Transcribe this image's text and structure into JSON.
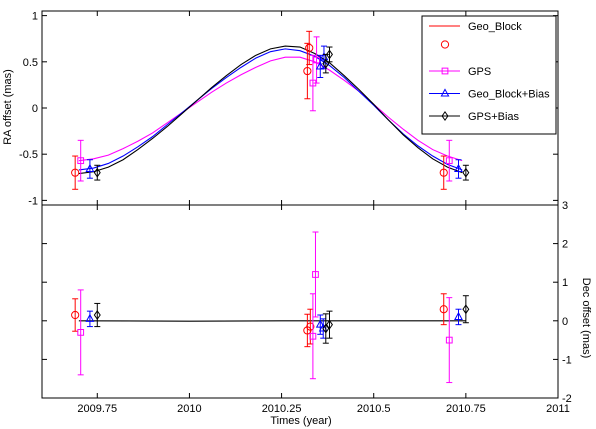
{
  "colors": {
    "Geo_Block": "#ff0000",
    "GPS": "#ff00ff",
    "Geo_Block+Bias": "#0000ff",
    "GPS+Bias": "#000000"
  },
  "chart_data": [
    {
      "type": "line",
      "panel": "top",
      "title": "",
      "xlabel": "",
      "ylabel": "RA offset (mas)",
      "xlim": [
        2009.6,
        2011.0
      ],
      "ylim": [
        -1.05,
        1.05
      ],
      "yticks": [
        -1,
        -0.5,
        0,
        0.5,
        1
      ],
      "ytick_labels": [
        "-1",
        "-0.5",
        "0",
        "0.5",
        "1"
      ],
      "grid": false,
      "legend": {
        "placement": "top-right",
        "entries": [
          {
            "label": "Geo_Block",
            "series": "Geo_Block",
            "line": true,
            "marker": false
          },
          {
            "label": "",
            "series": "Geo_Block",
            "line": false,
            "marker": "circle"
          },
          {
            "label": "GPS",
            "series": "GPS",
            "line": true,
            "marker": "square"
          },
          {
            "label": "Geo_Block+Bias",
            "series": "Geo_Block+Bias",
            "line": true,
            "marker": "triangle"
          },
          {
            "label": "GPS+Bias",
            "series": "GPS+Bias",
            "line": true,
            "marker": "diamond"
          }
        ]
      },
      "lines": [
        {
          "name": "GPS",
          "x": [
            2009.7,
            2009.74,
            2009.78,
            2009.82,
            2009.86,
            2009.9,
            2009.94,
            2009.98,
            2010.02,
            2010.06,
            2010.1,
            2010.14,
            2010.18,
            2010.22,
            2010.26,
            2010.3,
            2010.34,
            2010.38,
            2010.42,
            2010.46,
            2010.5,
            2010.54,
            2010.58,
            2010.62,
            2010.66,
            2010.7,
            2010.74
          ],
          "y": [
            -0.57,
            -0.55,
            -0.51,
            -0.44,
            -0.36,
            -0.27,
            -0.16,
            -0.05,
            0.06,
            0.17,
            0.27,
            0.36,
            0.44,
            0.51,
            0.55,
            0.55,
            0.5,
            0.41,
            0.3,
            0.18,
            0.04,
            -0.1,
            -0.23,
            -0.35,
            -0.45,
            -0.52,
            -0.57
          ]
        },
        {
          "name": "Geo_Block+Bias",
          "x": [
            2009.7,
            2009.74,
            2009.78,
            2009.82,
            2009.86,
            2009.9,
            2009.94,
            2009.98,
            2010.02,
            2010.06,
            2010.1,
            2010.14,
            2010.18,
            2010.22,
            2010.26,
            2010.3,
            2010.34,
            2010.38,
            2010.42,
            2010.46,
            2010.5,
            2010.54,
            2010.58,
            2010.62,
            2010.66,
            2010.7,
            2010.74
          ],
          "y": [
            -0.67,
            -0.65,
            -0.6,
            -0.52,
            -0.42,
            -0.31,
            -0.18,
            -0.05,
            0.08,
            0.21,
            0.33,
            0.44,
            0.54,
            0.61,
            0.64,
            0.62,
            0.56,
            0.46,
            0.33,
            0.18,
            0.03,
            -0.13,
            -0.28,
            -0.41,
            -0.52,
            -0.61,
            -0.67
          ]
        },
        {
          "name": "GPS+Bias",
          "x": [
            2009.7,
            2009.74,
            2009.78,
            2009.82,
            2009.86,
            2009.9,
            2009.94,
            2009.98,
            2010.02,
            2010.06,
            2010.1,
            2010.14,
            2010.18,
            2010.22,
            2010.26,
            2010.3,
            2010.34,
            2010.38,
            2010.42,
            2010.46,
            2010.5,
            2010.54,
            2010.58,
            2010.62,
            2010.66,
            2010.7,
            2010.74
          ],
          "y": [
            -0.71,
            -0.69,
            -0.64,
            -0.56,
            -0.45,
            -0.33,
            -0.2,
            -0.06,
            0.08,
            0.22,
            0.35,
            0.47,
            0.57,
            0.64,
            0.67,
            0.66,
            0.59,
            0.49,
            0.35,
            0.2,
            0.04,
            -0.13,
            -0.29,
            -0.43,
            -0.55,
            -0.64,
            -0.7
          ]
        }
      ],
      "points": [
        {
          "series": "Geo_Block",
          "marker": "circle",
          "x": [
            2009.69,
            2010.32,
            2010.69
          ],
          "y": [
            -0.7,
            0.4,
            -0.7
          ],
          "err": [
            0.18,
            0.3,
            0.18
          ]
        },
        {
          "series": "Geo_Block",
          "marker": "circle",
          "x": [
            2010.325
          ],
          "y": [
            0.65
          ],
          "err": [
            0.18
          ]
        },
        {
          "series": "GPS",
          "marker": "square",
          "x": [
            2009.705,
            2010.335,
            2010.345,
            2010.705
          ],
          "y": [
            -0.57,
            0.27,
            0.52,
            -0.57
          ],
          "err": [
            0.22,
            0.3,
            0.25,
            0.22
          ]
        },
        {
          "series": "Geo_Block+Bias",
          "marker": "triangle",
          "x": [
            2009.73,
            2010.355,
            2010.365,
            2010.73
          ],
          "y": [
            -0.66,
            0.45,
            0.55,
            -0.66
          ],
          "err": [
            0.1,
            0.12,
            0.12,
            0.1
          ]
        },
        {
          "series": "GPS+Bias",
          "marker": "diamond",
          "x": [
            2009.75,
            2010.37,
            2010.38,
            2010.75
          ],
          "y": [
            -0.7,
            0.48,
            0.58,
            -0.7
          ],
          "err": [
            0.08,
            0.1,
            0.08,
            0.08
          ]
        }
      ]
    },
    {
      "type": "line",
      "panel": "bottom",
      "title": "",
      "xlabel": "Times (year)",
      "ylabel": "Dec offset (mas)",
      "xlim": [
        2009.6,
        2011.0
      ],
      "ylim": [
        -2.0,
        3.0
      ],
      "xticks": [
        2009.75,
        2010.0,
        2010.25,
        2010.5,
        2010.75,
        2011.0
      ],
      "xtick_labels": [
        "2009.75",
        "2010",
        "2010.25",
        "2010.5",
        "2010.75",
        "2011"
      ],
      "yticks": [
        -2,
        -1,
        0,
        1,
        2,
        3
      ],
      "ytick_labels": [
        "-2",
        "-1",
        "0",
        "1",
        "2",
        "3"
      ],
      "grid": false,
      "lines": [
        {
          "name": "GPS+Bias",
          "x": [
            2009.7,
            2010.0,
            2010.25,
            2010.5,
            2010.75
          ],
          "y": [
            0.0,
            -0.01,
            0.0,
            0.0,
            0.0
          ]
        }
      ],
      "points": [
        {
          "series": "Geo_Block",
          "marker": "circle",
          "x": [
            2009.69,
            2010.32,
            2010.69
          ],
          "y": [
            0.15,
            -0.25,
            0.3
          ],
          "err": [
            0.42,
            0.42,
            0.4
          ]
        },
        {
          "series": "Geo_Block",
          "marker": "circle",
          "x": [
            2010.328
          ],
          "y": [
            -0.15
          ],
          "err": [
            0.45
          ]
        },
        {
          "series": "GPS",
          "marker": "square",
          "x": [
            2009.705,
            2010.335,
            2010.342,
            2010.705
          ],
          "y": [
            -0.3,
            -0.4,
            1.2,
            -0.5
          ],
          "err": [
            1.1,
            1.1,
            1.1,
            1.1
          ]
        },
        {
          "series": "Geo_Block+Bias",
          "marker": "triangle",
          "x": [
            2009.73,
            2010.355,
            2010.363,
            2010.73
          ],
          "y": [
            0.05,
            -0.1,
            -0.2,
            0.1
          ],
          "err": [
            0.2,
            0.25,
            0.25,
            0.2
          ]
        },
        {
          "series": "GPS+Bias",
          "marker": "diamond",
          "x": [
            2009.75,
            2010.37,
            2010.38,
            2010.75
          ],
          "y": [
            0.15,
            -0.2,
            -0.1,
            0.3
          ],
          "err": [
            0.3,
            0.38,
            0.35,
            0.35
          ]
        }
      ]
    }
  ]
}
